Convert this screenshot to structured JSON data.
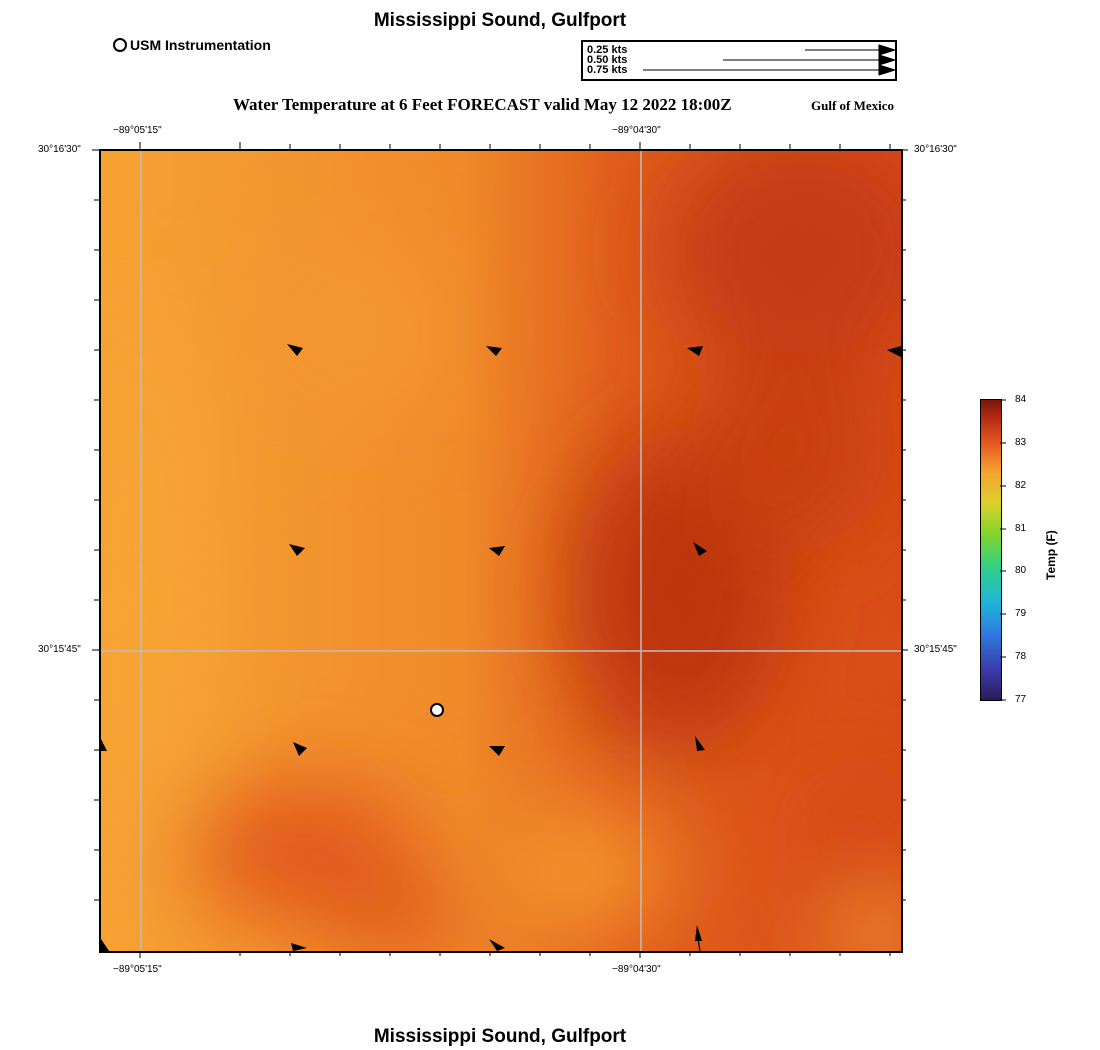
{
  "title": "Mississippi Sound, Gulfport",
  "footer_title": "Mississippi Sound, Gulfport",
  "legend": {
    "station_label": "USM Instrumentation"
  },
  "vector_scale": {
    "entries": [
      "0.25 kts",
      "0.50 kts",
      "0.75 kts"
    ]
  },
  "subtitle": "Water Temperature at 6 Feet FORECAST valid May 12 2022 18:00Z",
  "region_label": "Gulf of Mexico",
  "map": {
    "lon_labels": [
      "−89°05'15\"",
      "−89°04'30\""
    ],
    "lat_labels": [
      "30°16'30\"",
      "30°15'45\""
    ],
    "station": {
      "name": "USM Instrumentation",
      "icon": "circle-marker"
    },
    "arrow_icon": "current-arrow-icon"
  },
  "colorbar": {
    "title": "Temp (F)",
    "ticks": [
      "84",
      "83",
      "82",
      "81",
      "80",
      "79",
      "78",
      "77"
    ],
    "colors": [
      "#2a1a5e",
      "#3b3ba8",
      "#2f7ae0",
      "#20b7d8",
      "#2fd08a",
      "#7fd52e",
      "#e0cf2c",
      "#f5a232",
      "#e2571e",
      "#b52a12",
      "#7a160c"
    ]
  }
}
